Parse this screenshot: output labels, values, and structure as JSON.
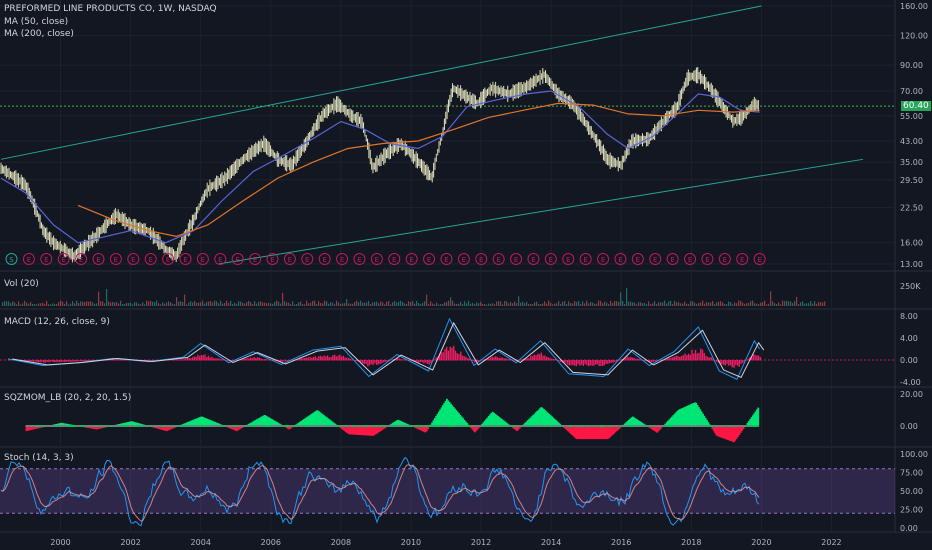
{
  "header": {
    "symbol_line": "PREFORMED LINE PRODUCTS CO, 1W, NASDAQ",
    "ma50_label": "MA (50, close)",
    "ma200_label": "MA (200, close)"
  },
  "price_badge": "60.40",
  "event_marker_first": "S",
  "event_marker_repeated": "E",
  "panes": {
    "price": {
      "y_ticks": [
        "160.00",
        "120.00",
        "90.00",
        "70.00",
        "55.00",
        "43.00",
        "35.00",
        "29.50",
        "22.50",
        "16.00",
        "13.00"
      ]
    },
    "volume": {
      "label": "Vol (20)",
      "y_ticks": [
        "250K"
      ]
    },
    "macd": {
      "label": "MACD (12, 26, close, 9)",
      "y_ticks": [
        "8.00",
        "4.00",
        "0.00",
        "-4.00"
      ]
    },
    "sqzmom": {
      "label": "SQZMOM_LB (20, 2, 20, 1.5)",
      "y_ticks": [
        "20.00",
        "0.00"
      ]
    },
    "stoch": {
      "label": "Stoch (14, 3, 3)",
      "y_ticks": [
        "100.00",
        "75.00",
        "50.00",
        "25.00",
        "0.00"
      ]
    }
  },
  "x_ticks": [
    "2000",
    "2002",
    "2004",
    "2006",
    "2008",
    "2010",
    "2012",
    "2014",
    "2016",
    "2018",
    "2020",
    "2022"
  ],
  "chart_data": {
    "type": "line",
    "title": "PREFORMED LINE PRODUCTS CO, 1W, NASDAQ",
    "x_unit": "year",
    "y_scale": "log",
    "ylim": [
      13,
      160
    ],
    "last_close": 60.4,
    "series": [
      {
        "name": "price (weekly close, approx.)",
        "color": "#d1d4dc",
        "points": [
          [
            1998.3,
            33
          ],
          [
            1999.0,
            28
          ],
          [
            1999.5,
            18
          ],
          [
            1999.8,
            16
          ],
          [
            2000.4,
            14
          ],
          [
            2001.0,
            17
          ],
          [
            2001.6,
            21
          ],
          [
            2002.0,
            19
          ],
          [
            2002.5,
            18
          ],
          [
            2003.0,
            15
          ],
          [
            2003.3,
            14
          ],
          [
            2003.8,
            20
          ],
          [
            2004.2,
            27
          ],
          [
            2004.7,
            30
          ],
          [
            2005.3,
            37
          ],
          [
            2005.8,
            42
          ],
          [
            2006.2,
            36
          ],
          [
            2006.6,
            34
          ],
          [
            2007.0,
            42
          ],
          [
            2007.5,
            56
          ],
          [
            2007.9,
            62
          ],
          [
            2008.3,
            55
          ],
          [
            2008.6,
            52
          ],
          [
            2008.9,
            33
          ],
          [
            2009.3,
            38
          ],
          [
            2009.7,
            42
          ],
          [
            2010.0,
            38
          ],
          [
            2010.6,
            30
          ],
          [
            2010.9,
            46
          ],
          [
            2011.2,
            72
          ],
          [
            2011.6,
            66
          ],
          [
            2011.9,
            62
          ],
          [
            2012.3,
            72
          ],
          [
            2012.8,
            68
          ],
          [
            2013.3,
            73
          ],
          [
            2013.8,
            82
          ],
          [
            2014.2,
            68
          ],
          [
            2014.6,
            62
          ],
          [
            2015.1,
            48
          ],
          [
            2015.6,
            36
          ],
          [
            2016.0,
            34
          ],
          [
            2016.3,
            43
          ],
          [
            2016.8,
            44
          ],
          [
            2017.2,
            52
          ],
          [
            2017.6,
            60
          ],
          [
            2017.9,
            80
          ],
          [
            2018.2,
            82
          ],
          [
            2018.6,
            70
          ],
          [
            2018.9,
            60
          ],
          [
            2019.2,
            52
          ],
          [
            2019.5,
            55
          ],
          [
            2019.8,
            62
          ],
          [
            2019.95,
            60.4
          ]
        ]
      },
      {
        "name": "MA (50, close)",
        "color": "#5b63d6",
        "points": [
          [
            1998.3,
            30
          ],
          [
            1999.0,
            26
          ],
          [
            1999.8,
            19
          ],
          [
            2000.5,
            16
          ],
          [
            2001.3,
            17
          ],
          [
            2002.0,
            18
          ],
          [
            2003.0,
            16
          ],
          [
            2003.8,
            18
          ],
          [
            2004.6,
            24
          ],
          [
            2005.5,
            32
          ],
          [
            2006.3,
            37
          ],
          [
            2007.2,
            44
          ],
          [
            2008.0,
            52
          ],
          [
            2008.7,
            48
          ],
          [
            2009.4,
            42
          ],
          [
            2010.2,
            40
          ],
          [
            2010.9,
            45
          ],
          [
            2011.6,
            60
          ],
          [
            2012.4,
            64
          ],
          [
            2013.3,
            68
          ],
          [
            2014.0,
            70
          ],
          [
            2014.8,
            60
          ],
          [
            2015.6,
            46
          ],
          [
            2016.2,
            40
          ],
          [
            2016.9,
            45
          ],
          [
            2017.6,
            56
          ],
          [
            2018.2,
            68
          ],
          [
            2018.8,
            66
          ],
          [
            2019.4,
            58
          ],
          [
            2019.95,
            57
          ]
        ]
      },
      {
        "name": "MA (200, close)",
        "color": "#e0752a",
        "points": [
          [
            2000.5,
            23
          ],
          [
            2001.5,
            20
          ],
          [
            2002.5,
            18
          ],
          [
            2003.3,
            17
          ],
          [
            2004.2,
            19
          ],
          [
            2005.2,
            24
          ],
          [
            2006.2,
            30
          ],
          [
            2007.2,
            35
          ],
          [
            2008.2,
            40
          ],
          [
            2009.2,
            42
          ],
          [
            2010.2,
            43
          ],
          [
            2011.2,
            48
          ],
          [
            2012.2,
            54
          ],
          [
            2013.2,
            58
          ],
          [
            2014.2,
            62
          ],
          [
            2015.2,
            61
          ],
          [
            2016.2,
            56
          ],
          [
            2017.2,
            55
          ],
          [
            2018.2,
            58
          ],
          [
            2019.2,
            57
          ],
          [
            2019.95,
            58
          ]
        ]
      }
    ],
    "trend_channel": {
      "upper": [
        [
          1998.3,
          36
        ],
        [
          2020.0,
          160
        ]
      ],
      "lower": [
        [
          2004.5,
          13
        ],
        [
          2022.9,
          36
        ]
      ],
      "color": "#26a69a"
    },
    "horizontal_line": {
      "value": 60.4,
      "color": "#4caf50",
      "style": "dotted"
    },
    "volume_ylim": [
      0,
      250000
    ],
    "macd_ylim": [
      -4,
      8
    ],
    "macd_approx": [
      [
        1998.5,
        0.2
      ],
      [
        1999.5,
        -1
      ],
      [
        2000.5,
        -0.5
      ],
      [
        2001.5,
        0.3
      ],
      [
        2002.5,
        -0.3
      ],
      [
        2003.5,
        0.5
      ],
      [
        2004.0,
        3
      ],
      [
        2004.8,
        -0.5
      ],
      [
        2005.5,
        1.5
      ],
      [
        2006.3,
        -0.8
      ],
      [
        2007.2,
        1.8
      ],
      [
        2008.0,
        2.5
      ],
      [
        2008.8,
        -3
      ],
      [
        2009.6,
        1
      ],
      [
        2010.5,
        -2
      ],
      [
        2011.1,
        7.5
      ],
      [
        2011.8,
        -1
      ],
      [
        2012.4,
        2
      ],
      [
        2013.0,
        -0.5
      ],
      [
        2013.7,
        3.5
      ],
      [
        2014.5,
        -2.5
      ],
      [
        2015.5,
        -3
      ],
      [
        2016.2,
        2
      ],
      [
        2016.8,
        -1
      ],
      [
        2017.5,
        1.5
      ],
      [
        2018.2,
        6
      ],
      [
        2018.8,
        -2
      ],
      [
        2019.3,
        -3.5
      ],
      [
        2019.8,
        3.5
      ],
      [
        2019.95,
        2
      ]
    ],
    "sqzmom_ylim": [
      -10,
      20
    ],
    "sqzmom_approx": [
      [
        1999.0,
        -3
      ],
      [
        2000.0,
        2
      ],
      [
        2001.0,
        -2
      ],
      [
        2002.0,
        3
      ],
      [
        2003.0,
        -3
      ],
      [
        2004.0,
        6
      ],
      [
        2005.0,
        -3
      ],
      [
        2005.8,
        7
      ],
      [
        2006.5,
        -2
      ],
      [
        2007.3,
        10
      ],
      [
        2008.2,
        -5
      ],
      [
        2008.9,
        -6
      ],
      [
        2009.6,
        4
      ],
      [
        2010.4,
        -4
      ],
      [
        2011.0,
        17
      ],
      [
        2011.8,
        -4
      ],
      [
        2012.3,
        9
      ],
      [
        2013.0,
        -3
      ],
      [
        2013.7,
        12
      ],
      [
        2014.7,
        -8
      ],
      [
        2015.6,
        -8
      ],
      [
        2016.3,
        6
      ],
      [
        2017.0,
        -4
      ],
      [
        2017.6,
        10
      ],
      [
        2018.1,
        15
      ],
      [
        2018.7,
        -6
      ],
      [
        2019.2,
        -10
      ],
      [
        2019.9,
        12
      ]
    ],
    "stoch_ylim": [
      0,
      100
    ],
    "stoch_bands": [
      20,
      80
    ]
  }
}
